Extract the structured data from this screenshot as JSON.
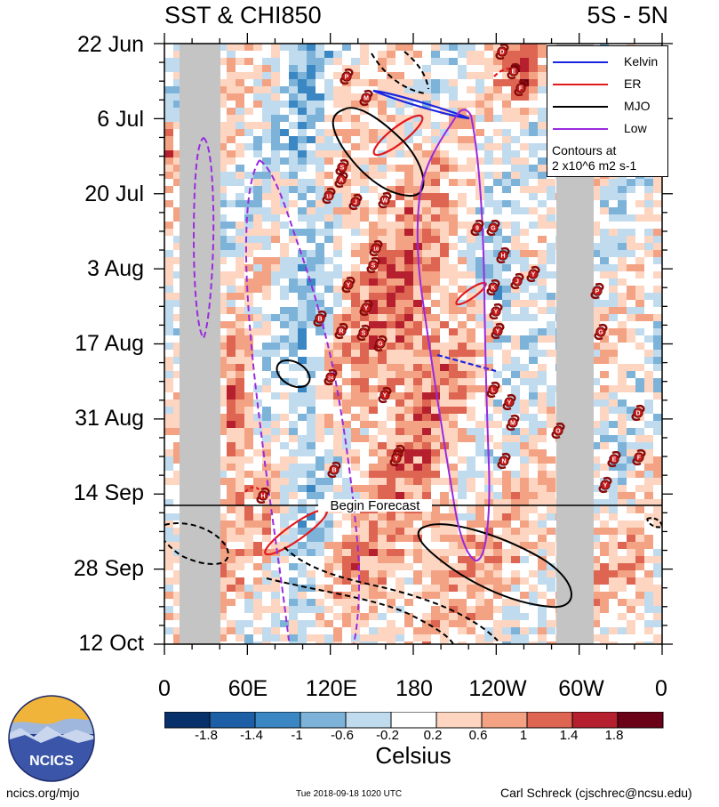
{
  "header": {
    "title_left": "SST & CHI850",
    "title_right": "5S - 5N"
  },
  "chart_data": {
    "type": "heatmap",
    "title": "SST & CHI850",
    "region": "5S - 5N",
    "y_axis": {
      "tick_labels": [
        "22 Jun",
        "6 Jul",
        "20 Jul",
        "3 Aug",
        "17 Aug",
        "31 Aug",
        "14 Sep",
        "28 Sep",
        "12 Oct"
      ],
      "range": [
        "22 Jun",
        "12 Oct"
      ]
    },
    "x_axis": {
      "tick_labels": [
        "0",
        "60E",
        "120E",
        "180",
        "120W",
        "60W",
        "0"
      ],
      "range_deg_east": [
        0,
        360
      ]
    },
    "forecast_label": "Begin Forecast",
    "forecast_start": "16 Sep",
    "colorbar": {
      "unit_label": "Celsius",
      "tick_labels": [
        "-1.8",
        "-1.4",
        "-1",
        "-0.6",
        "-0.2",
        "0.2",
        "0.6",
        "1",
        "1.4",
        "1.8"
      ],
      "colors": [
        "#08306b",
        "#1c5fa6",
        "#3a87c4",
        "#7db3d9",
        "#c0dbee",
        "#ffffff",
        "#fdd5c0",
        "#f3a384",
        "#dd6552",
        "#b51f2e",
        "#6b0117"
      ]
    },
    "legend": {
      "items": [
        {
          "label": "Kelvin",
          "color": "#1a24e0"
        },
        {
          "label": "ER",
          "color": "#e31a1c"
        },
        {
          "label": "MJO",
          "color": "#000000"
        },
        {
          "label": "Low",
          "color": "#9a2ae0"
        }
      ],
      "note_line1": "Contours at",
      "note_line2": "2 x10^6 m2 s-1",
      "position": "top-right"
    },
    "storm_markers": [
      "P",
      "M",
      "S",
      "A",
      "13",
      "J",
      "W",
      "18",
      "S",
      "Y",
      "B",
      "R",
      "S",
      "G",
      "24",
      "Y",
      "Y",
      "B",
      "L",
      "D",
      "E",
      "F",
      "9",
      "G",
      "H",
      "Y",
      "K",
      "J",
      "Y",
      "Y",
      "L",
      "Y",
      "M",
      "N",
      "O",
      "P",
      "G",
      "D",
      "E",
      "F",
      "Y",
      "H",
      "Y"
    ]
  },
  "logo": {
    "text": "NCICS"
  },
  "footer": {
    "url": "ncics.org/mjo",
    "timestamp": "Tue 2018-09-18 1020 UTC",
    "author": "Carl Schreck (cjschrec@ncsu.edu)"
  }
}
